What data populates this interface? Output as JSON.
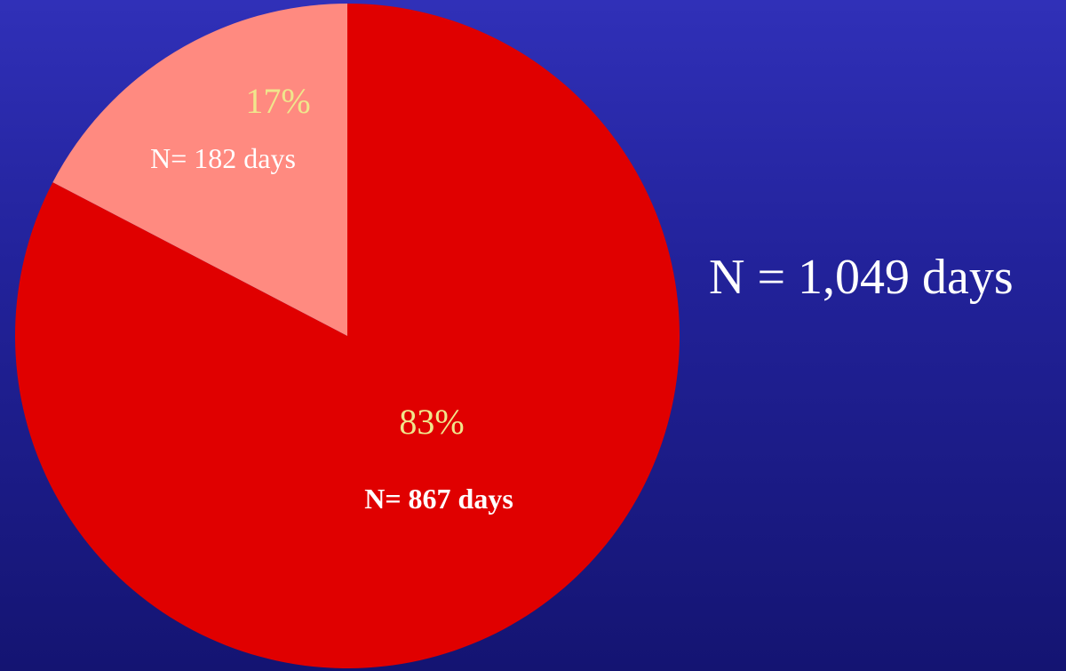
{
  "total_label": "N = 1,049 days",
  "chart_data": {
    "type": "pie",
    "title": "",
    "start": "12 o'clock",
    "direction": "clockwise",
    "slices": [
      {
        "value": 867,
        "percent_label": "83%",
        "count_label": "N= 867 days",
        "color": "#e00000",
        "percent_color": "#f0e68c",
        "count_color": "#ffffff",
        "count_bold": true
      },
      {
        "value": 182,
        "percent_label": "17%",
        "count_label": "N= 182 days",
        "color": "#ff8a80",
        "percent_color": "#f0e68c",
        "count_color": "#ffffff",
        "count_bold": false
      }
    ]
  }
}
